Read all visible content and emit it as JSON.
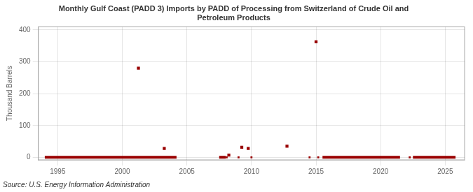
{
  "chart_data": {
    "type": "scatter",
    "title": "Monthly Gulf Coast (PADD 3) Imports by PADD of Processing from Switzerland of Crude Oil and\nPetroleum Products",
    "ylabel": "Thousand Barrels",
    "annotation": "Source: U.S. Energy Information Administration",
    "xlim": [
      1993.5,
      2026.5
    ],
    "ylim": [
      -8,
      410
    ],
    "xticks": [
      1995,
      2000,
      2005,
      2010,
      2015,
      2020,
      2025
    ],
    "yticks": [
      0,
      100,
      200,
      300,
      400
    ],
    "grid": true,
    "series": [
      {
        "type": "line",
        "color": "#990000",
        "x": [
          1994.0,
          2004.2
        ],
        "values": [
          0,
          0
        ]
      },
      {
        "type": "line",
        "color": "#990000",
        "x": [
          2007.5,
          2008.0
        ],
        "values": [
          0,
          0
        ]
      },
      {
        "type": "line",
        "color": "#990000",
        "x": [
          2015.5,
          2021.5
        ],
        "values": [
          0,
          0
        ]
      },
      {
        "type": "line",
        "color": "#990000",
        "x": [
          2022.5,
          2025.8
        ],
        "values": [
          0,
          0
        ]
      },
      {
        "type": "scatter",
        "color": "#990000",
        "marker": "square",
        "x": [
          2007.75,
          2008.08,
          2009.0,
          2010.0,
          2014.5,
          2015.17,
          2022.25,
          2023.5,
          2024.5
        ],
        "values": [
          0,
          0,
          0,
          0,
          0,
          0,
          0,
          0,
          0
        ]
      },
      {
        "type": "scatter",
        "color": "#990000",
        "marker": "square",
        "x": [
          2001.25,
          2003.25,
          2008.25,
          2009.25,
          2009.75,
          2012.75,
          2015.0
        ],
        "values": [
          280,
          28,
          7,
          32,
          28,
          35,
          363
        ]
      }
    ]
  }
}
